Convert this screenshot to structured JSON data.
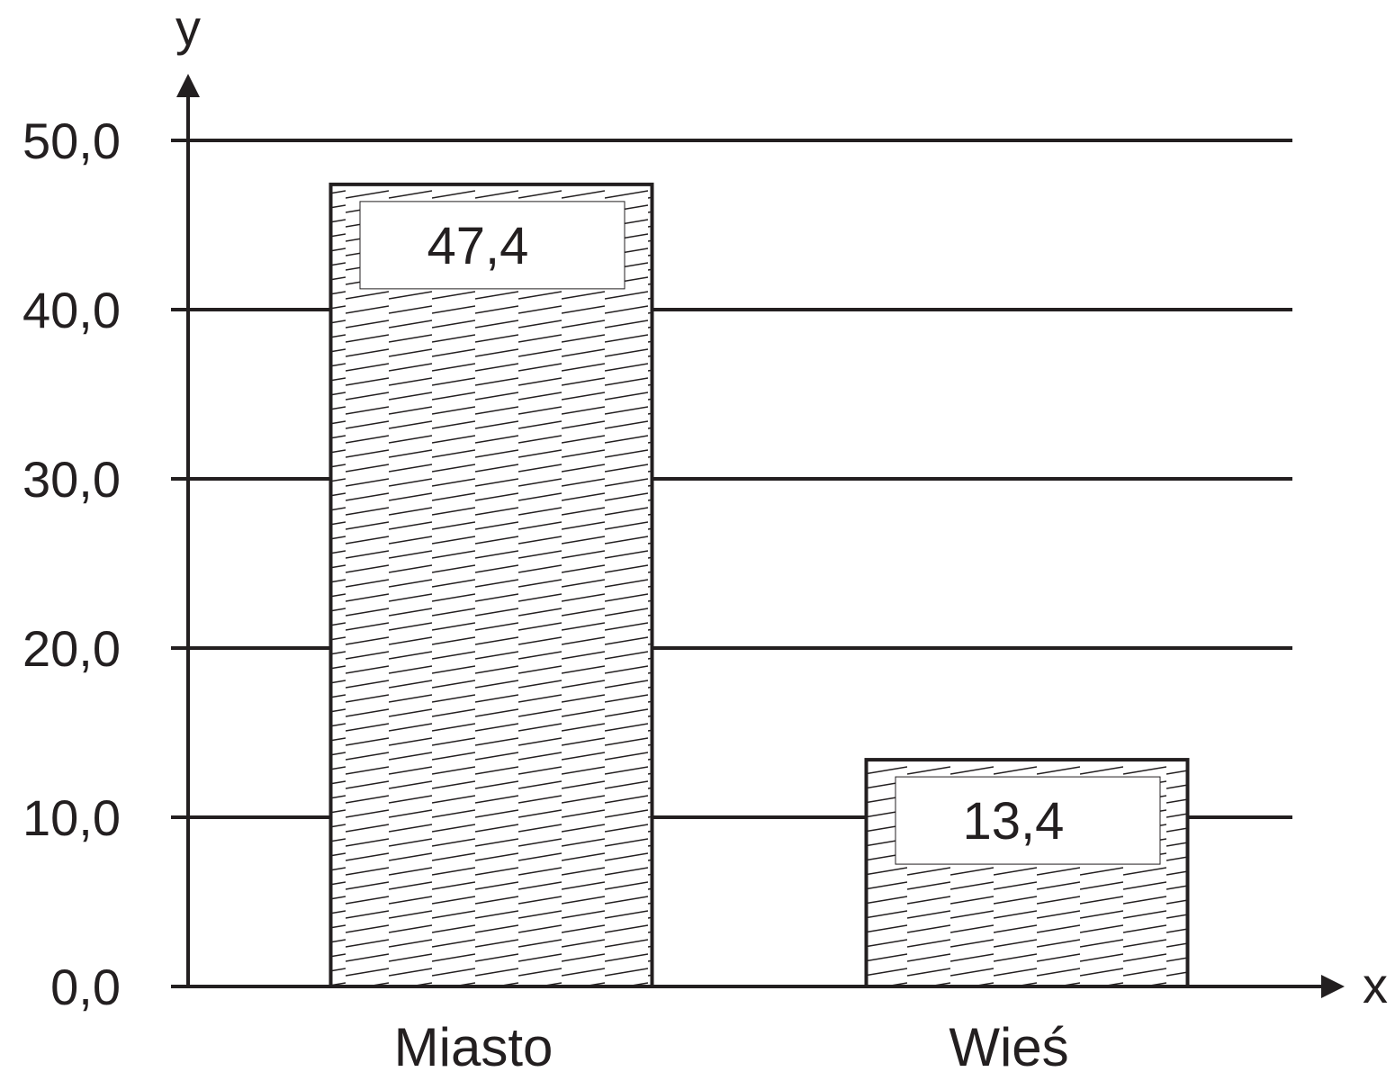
{
  "chart_data": {
    "type": "bar",
    "categories": [
      "Miasto",
      "Wieś"
    ],
    "values": [
      47.4,
      13.4
    ],
    "value_labels": [
      "47,4",
      "13,4"
    ],
    "xlabel": "x",
    "ylabel": "y",
    "ylim": [
      0,
      50
    ],
    "y_ticks": [
      0,
      10,
      20,
      30,
      40,
      50
    ],
    "y_tick_labels": [
      "0,0",
      "10,0",
      "20,0",
      "30,0",
      "40,0",
      "50,0"
    ],
    "grid": true,
    "legend": "none",
    "bar_fill": "hatched",
    "colors": {
      "ink": "#231f20",
      "background": "#ffffff"
    }
  }
}
